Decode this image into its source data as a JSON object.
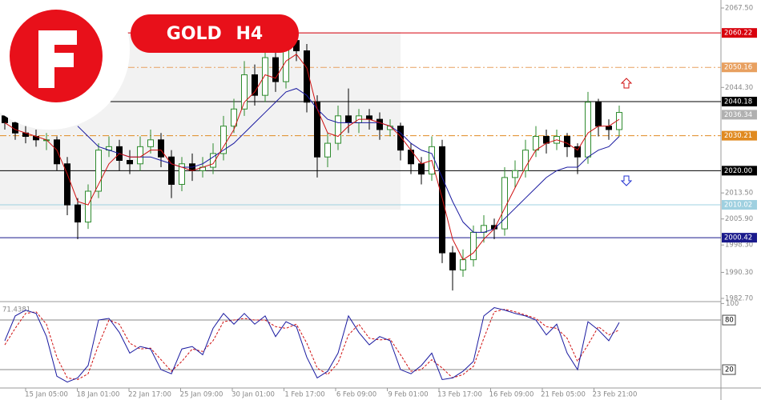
{
  "chart_data": {
    "type": "candlestick",
    "title": "GOLD H4",
    "up_color": "#2e8b2e",
    "down_color": "#000000",
    "ylim": [
      1982.7,
      2067.5
    ],
    "yticks": [
      {
        "value": 2067.5,
        "label": "2067.50"
      },
      {
        "value": 2044.3,
        "label": "2044.30"
      },
      {
        "value": 2013.5,
        "label": "2013.50"
      },
      {
        "value": 2005.9,
        "label": "2005.90"
      },
      {
        "value": 1998.3,
        "label": "1998.30"
      },
      {
        "value": 1990.3,
        "label": "1990.30"
      },
      {
        "value": 1982.7,
        "label": "1982.70"
      }
    ],
    "levels": [
      {
        "value": 2060.22,
        "color": "#d8000c",
        "style": "solid"
      },
      {
        "value": 2050.16,
        "color": "#e8a060",
        "style": "dashdot"
      },
      {
        "value": 2040.18,
        "color": "#000000",
        "style": "solid"
      },
      {
        "value": 2036.34,
        "color": "#b0b0b0",
        "style": "none"
      },
      {
        "value": 2030.21,
        "color": "#e08a20",
        "style": "dashdot"
      },
      {
        "value": 2020,
        "label": "2020.00",
        "color": "#000000",
        "style": "solid"
      },
      {
        "value": 2010.02,
        "color": "#9fd0e0",
        "style": "solid"
      },
      {
        "value": 2000.42,
        "color": "#1a1a8c",
        "style": "solid"
      }
    ],
    "xlabels": [
      "15 Jan 05:00",
      "18 Jan 01:00",
      "22 Jan 17:00",
      "25 Jan 09:00",
      "30 Jan 01:00",
      "1 Feb 17:00",
      "6 Feb 09:00",
      "9 Feb 01:00",
      "13 Feb 17:00",
      "16 Feb 09:00",
      "21 Feb 05:00",
      "23 Feb 21:00"
    ],
    "candles": [
      [
        2036,
        2038,
        2032,
        2034
      ],
      [
        2034,
        2036,
        2029,
        2031
      ],
      [
        2031,
        2033,
        2028,
        2030
      ],
      [
        2030,
        2032,
        2027,
        2029
      ],
      [
        2029,
        2031,
        2026,
        2029
      ],
      [
        2029,
        2030,
        2020,
        2022
      ],
      [
        2022,
        2024,
        2007,
        2010
      ],
      [
        2010,
        2012,
        2000,
        2005
      ],
      [
        2005,
        2016,
        2003,
        2014
      ],
      [
        2014,
        2028,
        2012,
        2026
      ],
      [
        2026,
        2030,
        2024,
        2027
      ],
      [
        2027,
        2029,
        2020,
        2023
      ],
      [
        2023,
        2026,
        2019,
        2022
      ],
      [
        2022,
        2030,
        2020,
        2027
      ],
      [
        2027,
        2032,
        2025,
        2029
      ],
      [
        2029,
        2031,
        2021,
        2024
      ],
      [
        2024,
        2026,
        2012,
        2016
      ],
      [
        2016,
        2024,
        2014,
        2022
      ],
      [
        2022,
        2025,
        2017,
        2020
      ],
      [
        2020,
        2024,
        2018,
        2021
      ],
      [
        2021,
        2028,
        2019,
        2025
      ],
      [
        2025,
        2036,
        2023,
        2033
      ],
      [
        2033,
        2041,
        2031,
        2038
      ],
      [
        2038,
        2052,
        2036,
        2048
      ],
      [
        2048,
        2051,
        2039,
        2042
      ],
      [
        2042,
        2057,
        2040,
        2053
      ],
      [
        2053,
        2055,
        2043,
        2046
      ],
      [
        2046,
        2061,
        2044,
        2058
      ],
      [
        2058,
        2061,
        2052,
        2055
      ],
      [
        2055,
        2057,
        2037,
        2040
      ],
      [
        2040,
        2042,
        2018,
        2024
      ],
      [
        2024,
        2031,
        2021,
        2028
      ],
      [
        2028,
        2039,
        2026,
        2036
      ],
      [
        2036,
        2044,
        2031,
        2034
      ],
      [
        2034,
        2038,
        2031,
        2036
      ],
      [
        2036,
        2038,
        2032,
        2035
      ],
      [
        2035,
        2037,
        2029,
        2032
      ],
      [
        2032,
        2035,
        2030,
        2033
      ],
      [
        2033,
        2034,
        2023,
        2026
      ],
      [
        2026,
        2028,
        2019,
        2022
      ],
      [
        2022,
        2024,
        2016,
        2019
      ],
      [
        2019,
        2030,
        2017,
        2027
      ],
      [
        2027,
        2029,
        1993,
        1996
      ],
      [
        1996,
        1998,
        1985,
        1991
      ],
      [
        1991,
        1997,
        1989,
        1994
      ],
      [
        1994,
        2004,
        1992,
        2002
      ],
      [
        2002,
        2007,
        1999,
        2004
      ],
      [
        2004,
        2006,
        2000,
        2003
      ],
      [
        2003,
        2021,
        2001,
        2018
      ],
      [
        2018,
        2023,
        2015,
        2020
      ],
      [
        2020,
        2029,
        2018,
        2026
      ],
      [
        2026,
        2033,
        2024,
        2030
      ],
      [
        2030,
        2032,
        2025,
        2028
      ],
      [
        2028,
        2032,
        2026,
        2030
      ],
      [
        2030,
        2031,
        2024,
        2027
      ],
      [
        2027,
        2028,
        2019,
        2024
      ],
      [
        2024,
        2043,
        2022,
        2040
      ],
      [
        2040,
        2041,
        2030,
        2033
      ],
      [
        2033,
        2035,
        2029,
        2032
      ],
      [
        2032,
        2039,
        2030,
        2037
      ]
    ],
    "ma_fast": {
      "color": "#d01010",
      "values": [
        2034,
        2032,
        2031,
        2030,
        2029,
        2026,
        2019,
        2011,
        2010,
        2016,
        2022,
        2025,
        2024,
        2024,
        2026,
        2026,
        2022,
        2021,
        2020,
        2021,
        2022,
        2027,
        2032,
        2040,
        2043,
        2048,
        2047,
        2052,
        2054,
        2050,
        2038,
        2031,
        2030,
        2033,
        2035,
        2035,
        2034,
        2033,
        2030,
        2026,
        2022,
        2023,
        2012,
        2000,
        1994,
        1996,
        2000,
        2003,
        2009,
        2015,
        2021,
        2026,
        2028,
        2029,
        2028,
        2026,
        2031,
        2033,
        2033,
        2035
      ]
    },
    "ma_slow": {
      "color": "#1a1aa0",
      "values": [
        null,
        null,
        null,
        null,
        null,
        null,
        null,
        2033,
        2030,
        2027,
        2026,
        2025,
        2024,
        2024,
        2024,
        2023,
        2022,
        2021,
        2021,
        2022,
        2024,
        2026,
        2028,
        2031,
        2034,
        2037,
        2040,
        2043,
        2044,
        2042,
        2038,
        2035,
        2034,
        2034,
        2034,
        2034,
        2034,
        2033,
        2031,
        2028,
        2026,
        2025,
        2018,
        2011,
        2005,
        2002,
        2002,
        2003,
        2006,
        2009,
        2012,
        2015,
        2018,
        2020,
        2021,
        2021,
        2024,
        2026,
        2027,
        2030
      ]
    },
    "stoch_label": 71.4381,
    "stoch_ylim": [
      0,
      100
    ],
    "stoch_yticks": [
      100
    ],
    "stoch_levels": [
      80,
      20
    ],
    "stoch_main": {
      "color": "#1a1aa0",
      "values": [
        55,
        85,
        92,
        88,
        60,
        12,
        5,
        10,
        25,
        80,
        82,
        65,
        40,
        48,
        45,
        20,
        15,
        45,
        48,
        38,
        70,
        88,
        75,
        88,
        75,
        85,
        60,
        78,
        72,
        35,
        10,
        18,
        40,
        85,
        65,
        50,
        60,
        55,
        20,
        15,
        25,
        40,
        8,
        10,
        18,
        30,
        85,
        95,
        92,
        88,
        85,
        80,
        62,
        75,
        40,
        20,
        78,
        68,
        55,
        77
      ]
    },
    "stoch_signal": {
      "color": "#d01010",
      "values": [
        50,
        70,
        88,
        90,
        75,
        35,
        10,
        8,
        15,
        50,
        80,
        75,
        52,
        45,
        46,
        32,
        18,
        30,
        45,
        42,
        55,
        78,
        80,
        82,
        80,
        80,
        72,
        70,
        75,
        52,
        22,
        14,
        28,
        62,
        75,
        58,
        56,
        57,
        38,
        18,
        20,
        32,
        22,
        10,
        14,
        24,
        58,
        90,
        93,
        90,
        86,
        82,
        72,
        70,
        58,
        30,
        50,
        72,
        62,
        68
      ]
    }
  }
}
